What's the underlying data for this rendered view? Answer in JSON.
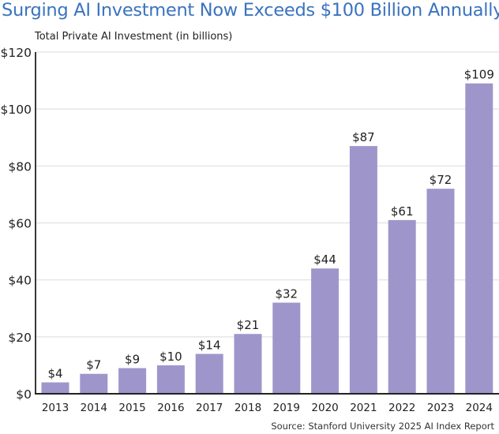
{
  "title": "Surging AI Investment Now Exceeds $100 Billion Annually",
  "source": "Source: Stanford University 2025 AI Index Report",
  "chart_data": {
    "type": "bar",
    "title": "Surging AI Investment Now Exceeds $100 Billion Annually",
    "ylabel": "Total Private AI Investment (in billions)",
    "xlabel": "",
    "categories": [
      "2013",
      "2014",
      "2015",
      "2016",
      "2017",
      "2018",
      "2019",
      "2020",
      "2021",
      "2022",
      "2023",
      "2024"
    ],
    "values": [
      4,
      7,
      9,
      10,
      14,
      21,
      32,
      44,
      87,
      61,
      72,
      109
    ],
    "data_labels": [
      "$4",
      "$7",
      "$9",
      "$10",
      "$14",
      "$21",
      "$32",
      "$44",
      "$87",
      "$61",
      "$72",
      "$109"
    ],
    "ylim": [
      0,
      120
    ],
    "yticks": [
      0,
      20,
      40,
      60,
      80,
      100,
      120
    ],
    "ytick_labels": [
      "$0",
      "$20",
      "$40",
      "$60",
      "$80",
      "$100",
      "$120"
    ],
    "grid": true,
    "bar_color": "#9e96cb",
    "title_color": "#3a73bf"
  }
}
